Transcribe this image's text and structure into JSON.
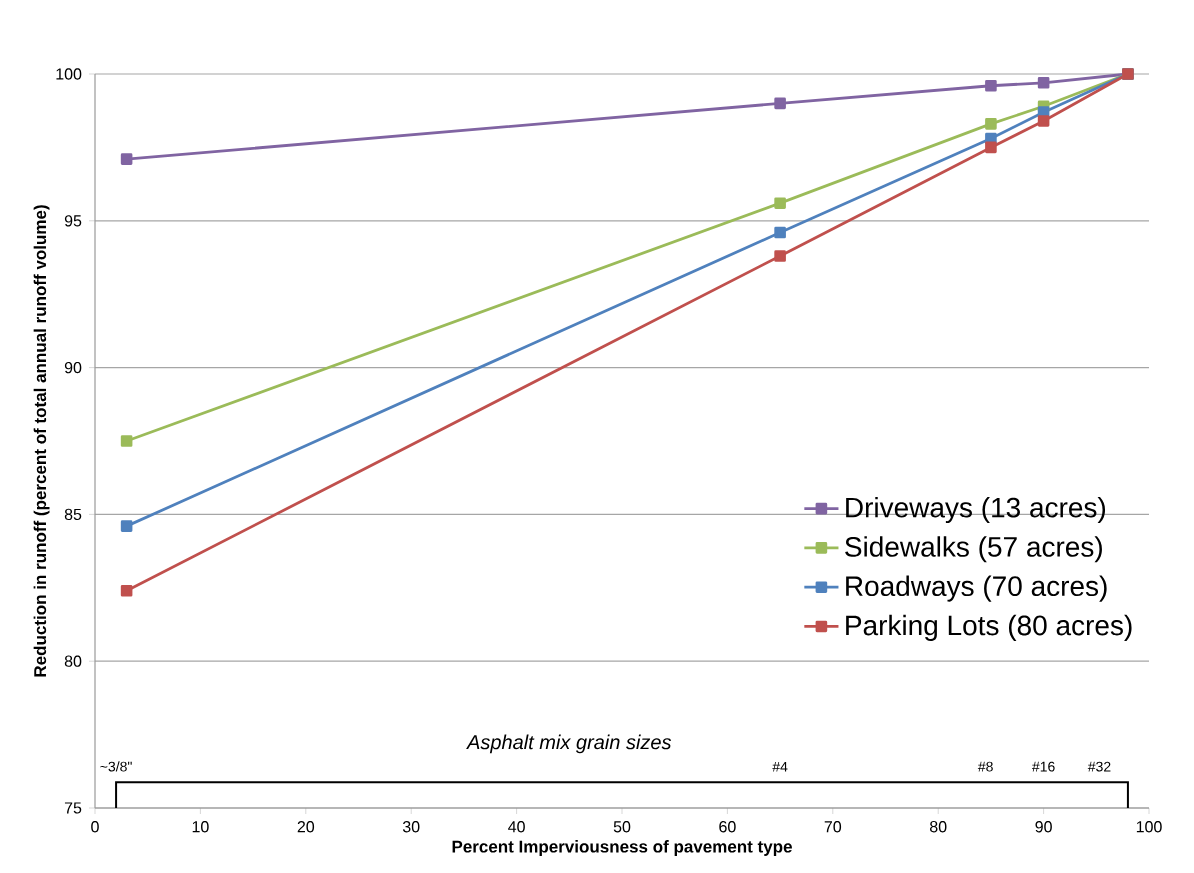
{
  "chart_data": {
    "type": "line",
    "xlabel": "Percent Imperviousness of pavement type",
    "ylabel": "Reduction in runoff (percent of total annual runoff volume)",
    "x": [
      3,
      65,
      85,
      90,
      98
    ],
    "series": [
      {
        "name": "Driveways (13 acres)",
        "color": "#8064a2",
        "values": [
          97.1,
          99.0,
          99.6,
          99.7,
          100
        ]
      },
      {
        "name": "Sidewalks (57 acres)",
        "color": "#9bbb59",
        "values": [
          87.5,
          95.6,
          98.3,
          98.9,
          100
        ]
      },
      {
        "name": "Roadways (70 acres)",
        "color": "#4f81bd",
        "values": [
          84.6,
          94.6,
          97.8,
          98.7,
          100
        ]
      },
      {
        "name": "Parking Lots (80 acres)",
        "color": "#c0504d",
        "values": [
          82.4,
          93.8,
          97.5,
          98.4,
          100
        ]
      }
    ],
    "xlim": [
      0,
      100
    ],
    "xticks": [
      0,
      10,
      20,
      30,
      40,
      50,
      60,
      70,
      80,
      90,
      100
    ],
    "ylim": [
      75,
      100
    ],
    "yticks": [
      75,
      80,
      85,
      90,
      95,
      100
    ],
    "grid": "y",
    "legend": "right",
    "marker": "square",
    "line_style": "solid",
    "annotations": [
      "Asphalt mix grain sizes",
      "~3/8\"",
      "#4",
      "#8",
      "#16",
      "#32"
    ]
  }
}
